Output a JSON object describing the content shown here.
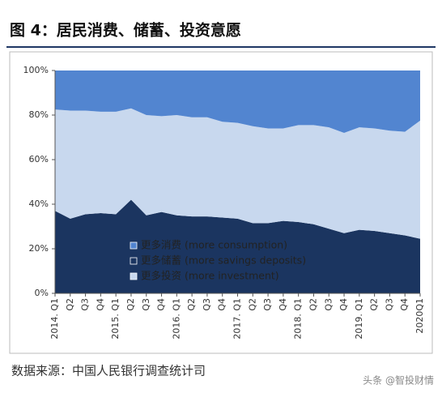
{
  "chart_data": {
    "type": "stacked_area_percent",
    "title": "图 4：居民消费、储蓄、投资意愿",
    "source": "数据来源：中国人民银行调查统计司",
    "watermark": "头条 @智投财情",
    "categories": [
      "2014. Q1",
      "Q2",
      "Q3",
      "Q4",
      "2015. Q1",
      "Q2",
      "Q3",
      "Q4",
      "2016. Q1",
      "Q2",
      "Q3",
      "Q4",
      "2017. Q1",
      "Q2",
      "Q3",
      "Q4",
      "2018. Q1",
      "Q2",
      "Q3",
      "Q4",
      "2019. Q1",
      "Q2",
      "Q3",
      "Q4",
      "2020Q1"
    ],
    "series": [
      {
        "name": "更多消费 (more consumption)",
        "color": "#5285d0",
        "values": [
          17.5,
          18,
          18,
          18.5,
          18.5,
          17,
          20,
          20.5,
          20,
          21,
          21,
          23,
          23.5,
          25,
          26,
          26,
          24.5,
          24.5,
          25.5,
          28,
          25.5,
          26,
          27,
          27.5,
          22.5
        ]
      },
      {
        "name": "更多储蓄 (more savings deposits)",
        "color": "#1b3560",
        "values": [
          37,
          33.5,
          35.5,
          36,
          35.5,
          42,
          35,
          36.5,
          35,
          34.5,
          34.5,
          34,
          33.5,
          31.5,
          31.5,
          32.5,
          32,
          31,
          29,
          27,
          28.5,
          28,
          27,
          26,
          24.5
        ]
      },
      {
        "name": "更多投资 (more investment)",
        "color": "#c8d8ee",
        "values": [
          45.5,
          48.5,
          46.5,
          45.5,
          46,
          41,
          45,
          43,
          45,
          44.5,
          44.5,
          43,
          43,
          43.5,
          42.5,
          41.5,
          43.5,
          44.5,
          45.5,
          45,
          46,
          46,
          46,
          46.5,
          53
        ]
      }
    ],
    "ylim": [
      0,
      100
    ],
    "yticks": [
      {
        "value": 0,
        "label": "0%"
      },
      {
        "value": 20,
        "label": "20%"
      },
      {
        "value": 40,
        "label": "40%"
      },
      {
        "value": 60,
        "label": "60%"
      },
      {
        "value": 80,
        "label": "80%"
      },
      {
        "value": 100,
        "label": "100%"
      }
    ]
  }
}
